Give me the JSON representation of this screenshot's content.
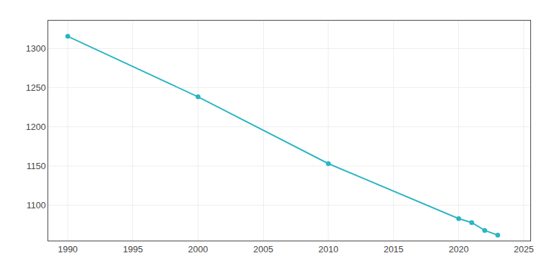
{
  "chart_data": {
    "type": "line",
    "x": [
      1990,
      2000,
      2010,
      2020,
      2021,
      2022,
      2023
    ],
    "values": [
      1315,
      1238,
      1153,
      1083,
      1078,
      1068,
      1062
    ],
    "color": "#29b5c3",
    "marker": "circle",
    "line_style": "solid",
    "xlim": [
      1988.5,
      2025.5
    ],
    "ylim": [
      1055,
      1335
    ],
    "xticks": [
      1990,
      1995,
      2000,
      2005,
      2010,
      2015,
      2020,
      2025
    ],
    "yticks": [
      1100,
      1150,
      1200,
      1250,
      1300
    ],
    "grid": true
  }
}
